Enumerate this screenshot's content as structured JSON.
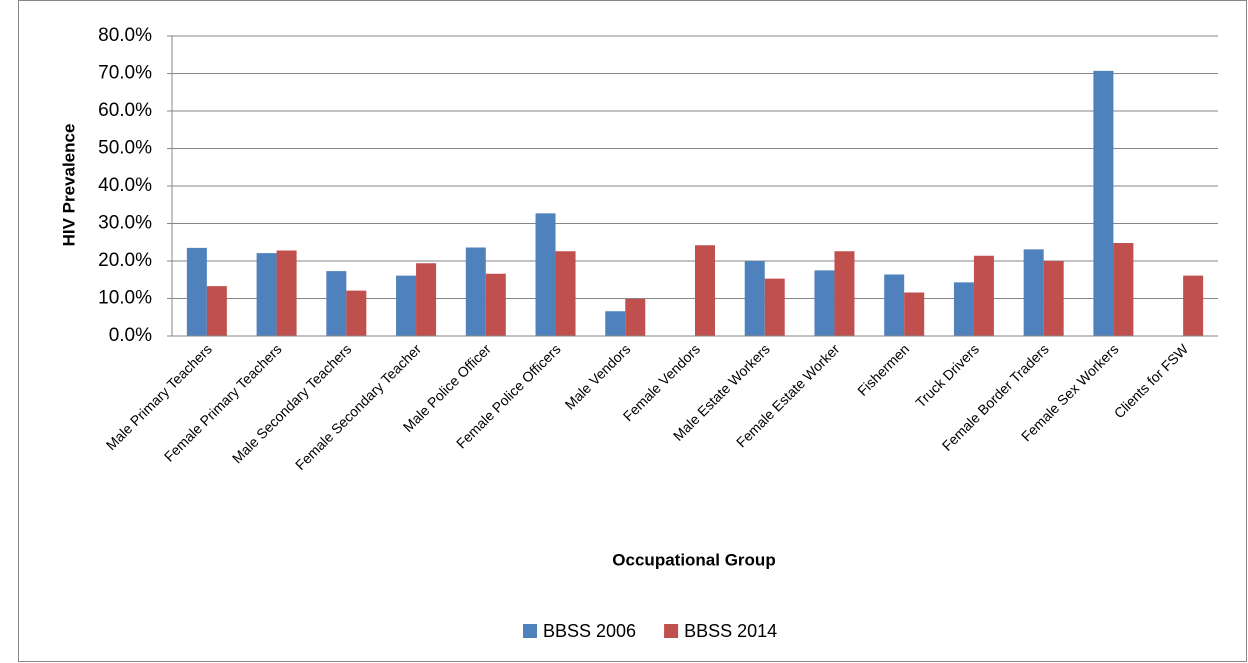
{
  "chart_data": {
    "type": "bar",
    "x_label": "Occupational Group",
    "y_label": "HIV Prevalence",
    "categories": [
      "Male Primary Teachers",
      "Female Primary Teachers",
      "Male Secondary Teachers",
      "Female Secondary Teacher",
      "Male Police Officer",
      "Female Police Officers",
      "Male Vendors",
      "Female Vendors",
      "Male Estate Workers",
      "Female Estate Worker",
      "Fishermen",
      "Truck Drivers",
      "Female Border Traders",
      "Female Sex Workers",
      "Clients for FSW"
    ],
    "series": [
      {
        "name": "BBSS 2006",
        "color": "#4f81bd",
        "values": [
          23.5,
          22.1,
          17.3,
          16.1,
          23.6,
          32.7,
          6.6,
          null,
          20.0,
          17.5,
          16.4,
          14.3,
          23.1,
          70.7,
          null
        ]
      },
      {
        "name": "BBSS 2014",
        "color": "#c0504d",
        "values": [
          13.3,
          22.8,
          12.1,
          19.4,
          16.6,
          22.6,
          9.9,
          24.2,
          15.3,
          22.6,
          11.6,
          21.4,
          20.0,
          24.8,
          16.1
        ]
      }
    ],
    "ylim": [
      0,
      80
    ],
    "yticks": [
      {
        "value": 0,
        "label": "0.0%"
      },
      {
        "value": 10,
        "label": "10.0%"
      },
      {
        "value": 20,
        "label": "20.0%"
      },
      {
        "value": 30,
        "label": "30.0%"
      },
      {
        "value": 40,
        "label": "40.0%"
      },
      {
        "value": 50,
        "label": "50.0%"
      },
      {
        "value": 60,
        "label": "60.0%"
      },
      {
        "value": 70,
        "label": "70.0%"
      },
      {
        "value": 80,
        "label": "80.0%"
      }
    ],
    "grid": true,
    "legend": "bottom"
  }
}
